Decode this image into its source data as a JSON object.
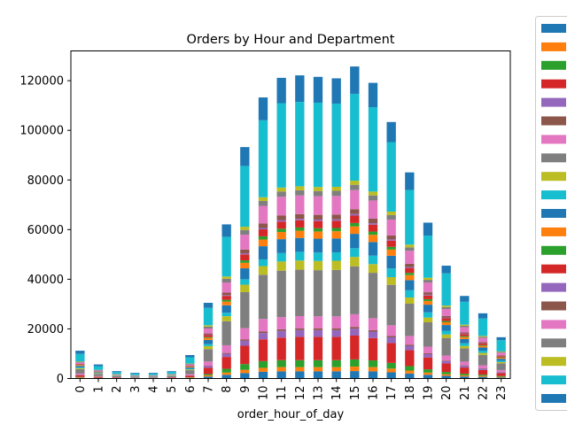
{
  "chart_data": {
    "type": "bar",
    "stacked": true,
    "title": "Orders by Hour and Department",
    "xlabel": "order_hour_of_day",
    "ylabel": "",
    "ylim": [
      0,
      132000
    ],
    "yticks": [
      0,
      20000,
      40000,
      60000,
      80000,
      100000,
      120000
    ],
    "ytick_labels": [
      "0",
      "20000",
      "40000",
      "60000",
      "80000",
      "100000",
      "120000"
    ],
    "categories": [
      "0",
      "1",
      "2",
      "3",
      "4",
      "5",
      "6",
      "7",
      "8",
      "9",
      "10",
      "11",
      "12",
      "13",
      "14",
      "15",
      "16",
      "17",
      "18",
      "19",
      "20",
      "21",
      "22",
      "23"
    ],
    "legend_location": "outside right, clipped",
    "series": [
      {
        "name": "",
        "color": "#1f77b4",
        "values": [
          300,
          150,
          80,
          60,
          60,
          80,
          250,
          800,
          1500,
          2200,
          2700,
          2900,
          2900,
          2900,
          2900,
          3000,
          2900,
          2500,
          2000,
          1500,
          1100,
          800,
          650,
          420
        ]
      },
      {
        "name": "",
        "color": "#ff7f0e",
        "values": [
          200,
          100,
          50,
          40,
          40,
          60,
          150,
          500,
          900,
          1300,
          1600,
          1700,
          1700,
          1700,
          1700,
          1800,
          1700,
          1500,
          1200,
          900,
          650,
          480,
          380,
          250
        ]
      },
      {
        "name": "",
        "color": "#2ca02c",
        "values": [
          150,
          80,
          40,
          30,
          30,
          50,
          120,
          500,
          1500,
          2300,
          2700,
          2800,
          2800,
          2800,
          2800,
          2900,
          2700,
          2300,
          1800,
          1300,
          900,
          650,
          500,
          320
        ]
      },
      {
        "name": "",
        "color": "#d62728",
        "values": [
          700,
          350,
          180,
          130,
          130,
          180,
          600,
          2500,
          4800,
          7400,
          8800,
          9100,
          9400,
          9400,
          9400,
          9600,
          9000,
          8000,
          6400,
          4800,
          3400,
          2500,
          1900,
          1200
        ]
      },
      {
        "name": "",
        "color": "#9467bd",
        "values": [
          200,
          100,
          60,
          40,
          40,
          60,
          200,
          700,
          1300,
          2000,
          2500,
          2700,
          2700,
          2700,
          2700,
          2800,
          2600,
          2300,
          1800,
          1300,
          950,
          700,
          550,
          350
        ]
      },
      {
        "name": "",
        "color": "#8c564b",
        "values": [
          30,
          15,
          8,
          6,
          6,
          10,
          40,
          150,
          300,
          500,
          600,
          650,
          650,
          650,
          650,
          700,
          600,
          550,
          450,
          350,
          250,
          180,
          140,
          80
        ]
      },
      {
        "name": "",
        "color": "#e377c2",
        "values": [
          400,
          200,
          100,
          80,
          80,
          100,
          400,
          1700,
          3100,
          4600,
          5100,
          4900,
          5000,
          4900,
          4900,
          5100,
          4800,
          4300,
          3500,
          2700,
          2000,
          1500,
          1200,
          800
        ]
      },
      {
        "name": "",
        "color": "#7f7f7f",
        "values": [
          1800,
          900,
          450,
          350,
          350,
          450,
          1600,
          5000,
          9700,
          14500,
          17800,
          18700,
          18700,
          18600,
          18700,
          19300,
          18300,
          16300,
          13000,
          9800,
          7100,
          5300,
          4200,
          2700
        ]
      },
      {
        "name": "",
        "color": "#bcbd22",
        "values": [
          400,
          200,
          100,
          80,
          80,
          100,
          300,
          1200,
          2000,
          3000,
          3500,
          3700,
          3700,
          3700,
          3700,
          3800,
          3500,
          3100,
          2500,
          1900,
          1400,
          1000,
          800,
          500
        ]
      },
      {
        "name": "",
        "color": "#17becf",
        "values": [
          300,
          150,
          80,
          60,
          60,
          80,
          250,
          800,
          1400,
          2200,
          2700,
          3400,
          3500,
          3400,
          3400,
          3500,
          3400,
          3500,
          2900,
          2100,
          1500,
          1100,
          900,
          550
        ]
      },
      {
        "name": "",
        "color": "#1f77b4",
        "values": [
          600,
          300,
          150,
          120,
          120,
          150,
          500,
          1700,
          3000,
          4400,
          5300,
          5600,
          5600,
          5600,
          5600,
          5800,
          5500,
          5100,
          4100,
          3100,
          2300,
          1700,
          1300,
          800
        ]
      },
      {
        "name": "",
        "color": "#ff7f0e",
        "values": [
          300,
          150,
          80,
          60,
          60,
          80,
          250,
          800,
          1500,
          2200,
          2700,
          2900,
          2900,
          2900,
          2900,
          3000,
          2900,
          2500,
          2000,
          1500,
          1100,
          800,
          650,
          420
        ]
      },
      {
        "name": "",
        "color": "#2ca02c",
        "values": [
          100,
          50,
          25,
          20,
          20,
          25,
          100,
          350,
          700,
          1000,
          1300,
          1300,
          1300,
          1300,
          1300,
          1350,
          1300,
          1100,
          900,
          700,
          500,
          380,
          300,
          180
        ]
      },
      {
        "name": "",
        "color": "#d62728",
        "values": [
          200,
          100,
          50,
          40,
          40,
          60,
          200,
          800,
          1600,
          2400,
          2800,
          2900,
          2900,
          2900,
          2900,
          3000,
          2800,
          2500,
          2000,
          1500,
          1100,
          800,
          650,
          400
        ]
      },
      {
        "name": "",
        "color": "#9467bd",
        "values": [
          30,
          15,
          8,
          6,
          6,
          10,
          40,
          150,
          300,
          450,
          550,
          600,
          600,
          600,
          600,
          620,
          580,
          500,
          400,
          300,
          220,
          160,
          130,
          80
        ]
      },
      {
        "name": "",
        "color": "#8c564b",
        "values": [
          150,
          80,
          40,
          30,
          30,
          40,
          150,
          500,
          1000,
          1500,
          1800,
          1900,
          1900,
          1900,
          1900,
          1950,
          1850,
          1600,
          1300,
          1000,
          700,
          520,
          410,
          260
        ]
      },
      {
        "name": "",
        "color": "#e377c2",
        "values": [
          600,
          300,
          150,
          120,
          120,
          150,
          500,
          2000,
          4100,
          6000,
          7100,
          7500,
          7500,
          7500,
          7500,
          7700,
          7300,
          6400,
          5200,
          3900,
          2800,
          2100,
          1700,
          1100
        ]
      },
      {
        "name": "",
        "color": "#7f7f7f",
        "values": [
          300,
          150,
          80,
          60,
          60,
          80,
          250,
          800,
          1500,
          1900,
          2000,
          2100,
          2100,
          2100,
          2100,
          2150,
          2050,
          1800,
          1400,
          1100,
          800,
          600,
          480,
          300
        ]
      },
      {
        "name": "",
        "color": "#bcbd22",
        "values": [
          150,
          80,
          40,
          30,
          30,
          40,
          150,
          500,
          900,
          1300,
          1500,
          1600,
          1600,
          1600,
          1600,
          1650,
          1550,
          1400,
          1100,
          850,
          600,
          450,
          360,
          230
        ]
      },
      {
        "name": "",
        "color": "#17becf",
        "values": [
          3000,
          1500,
          800,
          600,
          600,
          800,
          2500,
          7000,
          16000,
          24500,
          31000,
          34000,
          34000,
          34000,
          33500,
          35000,
          34000,
          28000,
          22000,
          17000,
          13000,
          9200,
          7000,
          4500
        ]
      },
      {
        "name": "",
        "color": "#1f77b4",
        "values": [
          1300,
          700,
          400,
          300,
          300,
          350,
          900,
          2050,
          5000,
          7600,
          9200,
          10200,
          10700,
          10400,
          10200,
          11000,
          9800,
          8100,
          7100,
          5200,
          3100,
          2350,
          2070,
          1200
        ]
      }
    ]
  }
}
